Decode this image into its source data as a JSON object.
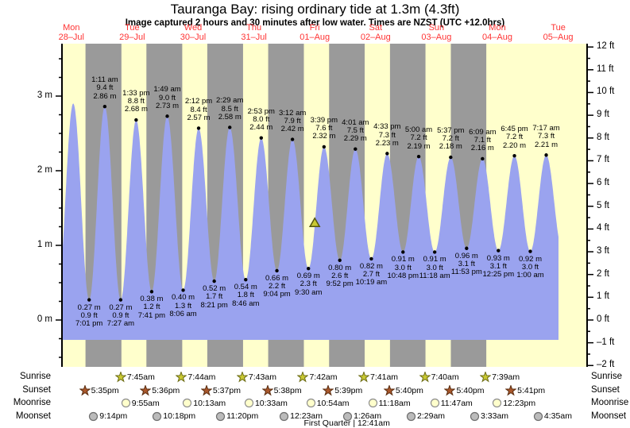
{
  "chart_data": {
    "type": "area",
    "title": "Tauranga Bay: rising ordinary tide at 1.3m (4.3ft)",
    "subtitle": "Image captured 2 hours and 30 minutes after low water. Times are NZST (UTC +12.0hrs)",
    "y_axis_left": {
      "unit": "m",
      "labels": [
        {
          "v": 0,
          "label": "0 m"
        },
        {
          "v": 1,
          "label": "1 m"
        },
        {
          "v": 2,
          "label": "2 m"
        },
        {
          "v": 3,
          "label": "3 m"
        }
      ]
    },
    "y_axis_right": {
      "unit": "ft",
      "min": -2,
      "max": 12
    },
    "days": [
      {
        "name": "Mon",
        "date": "28–Jul"
      },
      {
        "name": "Tue",
        "date": "29–Jul"
      },
      {
        "name": "Wed",
        "date": "30–Jul"
      },
      {
        "name": "Thu",
        "date": "31–Jul"
      },
      {
        "name": "Fri",
        "date": "01–Aug"
      },
      {
        "name": "Sat",
        "date": "02–Aug"
      },
      {
        "name": "Sun",
        "date": "03–Aug"
      },
      {
        "name": "Mon",
        "date": "04–Aug"
      },
      {
        "name": "Tue",
        "date": "05–Aug"
      }
    ],
    "extremes": [
      {
        "type": "low",
        "t": 6.4,
        "h": 0.25,
        "labeled": false
      },
      {
        "type": "high",
        "t": 12.75,
        "h": 2.9,
        "labeled": false
      },
      {
        "type": "low",
        "t": 19.017,
        "h": 0.27,
        "m": "0.27 m",
        "ft": "0.9 ft",
        "time": "7:01 pm",
        "labeled": true
      },
      {
        "type": "high",
        "t": 25.183,
        "h": 2.86,
        "m": "2.86 m",
        "ft": "9.4 ft",
        "time": "1:11 am",
        "labeled": true
      },
      {
        "type": "low",
        "t": 31.45,
        "h": 0.27,
        "m": "0.27 m",
        "ft": "0.9 ft",
        "time": "7:27 am",
        "labeled": true
      },
      {
        "type": "high",
        "t": 37.55,
        "h": 2.68,
        "m": "2.68 m",
        "ft": "8.8 ft",
        "time": "1:33 pm",
        "labeled": true
      },
      {
        "type": "low",
        "t": 43.683,
        "h": 0.38,
        "m": "0.38 m",
        "ft": "1.2 ft",
        "time": "7:41 pm",
        "labeled": true
      },
      {
        "type": "high",
        "t": 49.817,
        "h": 2.73,
        "m": "2.73 m",
        "ft": "9.0 ft",
        "time": "1:49 am",
        "labeled": true
      },
      {
        "type": "low",
        "t": 56.1,
        "h": 0.4,
        "m": "0.40 m",
        "ft": "1.3 ft",
        "time": "8:06 am",
        "labeled": true
      },
      {
        "type": "high",
        "t": 62.2,
        "h": 2.57,
        "m": "2.57 m",
        "ft": "8.4 ft",
        "time": "2:12 pm",
        "labeled": true
      },
      {
        "type": "low",
        "t": 68.35,
        "h": 0.52,
        "m": "0.52 m",
        "ft": "1.7 ft",
        "time": "8:21 pm",
        "labeled": true
      },
      {
        "type": "high",
        "t": 74.483,
        "h": 2.58,
        "m": "2.58 m",
        "ft": "8.5 ft",
        "time": "2:29 am",
        "labeled": true
      },
      {
        "type": "low",
        "t": 80.767,
        "h": 0.54,
        "m": "0.54 m",
        "ft": "1.8 ft",
        "time": "8:46 am",
        "labeled": true
      },
      {
        "type": "high",
        "t": 86.883,
        "h": 2.44,
        "m": "2.44 m",
        "ft": "8.0 ft",
        "time": "2:53 pm",
        "labeled": true
      },
      {
        "type": "low",
        "t": 93.067,
        "h": 0.66,
        "m": "0.66 m",
        "ft": "2.2 ft",
        "time": "9:04 pm",
        "labeled": true
      },
      {
        "type": "high",
        "t": 99.2,
        "h": 2.42,
        "m": "2.42 m",
        "ft": "7.9 ft",
        "time": "3:12 am",
        "labeled": true
      },
      {
        "type": "low",
        "t": 105.5,
        "h": 0.69,
        "m": "0.69 m",
        "ft": "2.3 ft",
        "time": "9:30 am",
        "labeled": true
      },
      {
        "type": "high",
        "t": 111.65,
        "h": 2.32,
        "m": "2.32 m",
        "ft": "7.6 ft",
        "time": "3:39 pm",
        "labeled": true
      },
      {
        "type": "low",
        "t": 117.867,
        "h": 0.8,
        "m": "0.80 m",
        "ft": "2.6 ft",
        "time": "9:52 pm",
        "labeled": true
      },
      {
        "type": "high",
        "t": 124.017,
        "h": 2.29,
        "m": "2.29 m",
        "ft": "7.5 ft",
        "time": "4:01 am",
        "labeled": true
      },
      {
        "type": "low",
        "t": 130.317,
        "h": 0.82,
        "m": "0.82 m",
        "ft": "2.7 ft",
        "time": "10:19 am",
        "labeled": true
      },
      {
        "type": "high",
        "t": 136.55,
        "h": 2.23,
        "m": "2.23 m",
        "ft": "7.3 ft",
        "time": "4:33 pm",
        "labeled": true
      },
      {
        "type": "low",
        "t": 142.8,
        "h": 0.91,
        "m": "0.91 m",
        "ft": "3.0 ft",
        "time": "10:48 pm",
        "labeled": true
      },
      {
        "type": "high",
        "t": 149.0,
        "h": 2.19,
        "m": "2.19 m",
        "ft": "7.2 ft",
        "time": "5:00 am",
        "labeled": true
      },
      {
        "type": "low",
        "t": 155.3,
        "h": 0.91,
        "m": "0.91 m",
        "ft": "3.0 ft",
        "time": "11:18 am",
        "labeled": true
      },
      {
        "type": "high",
        "t": 161.617,
        "h": 2.18,
        "m": "2.18 m",
        "ft": "7.2 ft",
        "time": "5:37 pm",
        "labeled": true
      },
      {
        "type": "low",
        "t": 167.883,
        "h": 0.96,
        "m": "0.96 m",
        "ft": "3.1 ft",
        "time": "11:53 pm",
        "labeled": true
      },
      {
        "type": "high",
        "t": 174.15,
        "h": 2.16,
        "m": "2.16 m",
        "ft": "7.1 ft",
        "time": "6:09 am",
        "labeled": true
      },
      {
        "type": "low",
        "t": 180.417,
        "h": 0.93,
        "m": "0.93 m",
        "ft": "3.1 ft",
        "time": "12:25 pm",
        "labeled": true
      },
      {
        "type": "high",
        "t": 186.75,
        "h": 2.2,
        "m": "2.20 m",
        "ft": "7.2 ft",
        "time": "6:45 pm",
        "labeled": true
      },
      {
        "type": "low",
        "t": 193.0,
        "h": 0.92,
        "m": "0.92 m",
        "ft": "3.0 ft",
        "time": "1:00 am",
        "labeled": true
      },
      {
        "type": "high",
        "t": 199.283,
        "h": 2.21,
        "m": "2.21 m",
        "ft": "7.3 ft",
        "time": "7:17 am",
        "labeled": true
      },
      {
        "type": "low",
        "t": 205.6,
        "h": 0.95,
        "labeled": false
      }
    ],
    "current_marker": {
      "t": 108.0,
      "height_m": 1.3
    },
    "night_bands": [
      [
        17.583,
        31.75
      ],
      [
        41.6,
        55.733
      ],
      [
        65.617,
        79.717
      ],
      [
        89.633,
        103.7
      ],
      [
        113.65,
        127.683
      ],
      [
        137.667,
        151.667
      ],
      [
        161.667,
        175.65
      ]
    ]
  },
  "rows": {
    "sunrise": {
      "label": "Sunrise",
      "entries": [
        {
          "time": "7:45am",
          "t": 31.75
        },
        {
          "time": "7:44am",
          "t": 55.733
        },
        {
          "time": "7:43am",
          "t": 79.717
        },
        {
          "time": "7:42am",
          "t": 103.7
        },
        {
          "time": "7:41am",
          "t": 127.683
        },
        {
          "time": "7:40am",
          "t": 151.667
        },
        {
          "time": "7:39am",
          "t": 175.65
        }
      ]
    },
    "sunset": {
      "label": "Sunset",
      "entries": [
        {
          "time": "5:35pm",
          "t": 17.583
        },
        {
          "time": "5:36pm",
          "t": 41.6
        },
        {
          "time": "5:37pm",
          "t": 65.617
        },
        {
          "time": "5:38pm",
          "t": 89.633
        },
        {
          "time": "5:39pm",
          "t": 113.65
        },
        {
          "time": "5:40pm",
          "t": 137.667
        },
        {
          "time": "5:40pm",
          "t": 161.667
        },
        {
          "time": "5:41pm",
          "t": 185.683
        }
      ]
    },
    "moonrise": {
      "label": "Moonrise",
      "entries": [
        {
          "time": "9:55am",
          "t": 33.917
        },
        {
          "time": "10:13am",
          "t": 58.217
        },
        {
          "time": "10:33am",
          "t": 82.55
        },
        {
          "time": "10:54am",
          "t": 106.9
        },
        {
          "time": "11:18am",
          "t": 131.3
        },
        {
          "time": "11:47am",
          "t": 155.783
        },
        {
          "time": "12:23pm",
          "t": 180.383
        }
      ]
    },
    "moonset": {
      "label": "Moonset",
      "entries": [
        {
          "time": "9:14pm",
          "t": 21.233
        },
        {
          "time": "10:18pm",
          "t": 46.3
        },
        {
          "time": "11:20pm",
          "t": 71.333
        },
        {
          "time": "12:23am",
          "t": 96.383
        },
        {
          "time": "1:26am",
          "t": 121.433
        },
        {
          "time": "2:29am",
          "t": 146.483
        },
        {
          "time": "3:33am",
          "t": 171.55
        },
        {
          "time": "4:35am",
          "t": 196.583
        }
      ]
    }
  },
  "moon_phase": {
    "text": "First Quarter | 12:41am",
    "t": 120.683
  },
  "colors": {
    "day_band": "#FFFFCC",
    "night_band": "#9A9A9A",
    "tide_fill": "#9AA3EF",
    "day_label": "#FF3333",
    "sunrise_star": "#C9C932",
    "sunrise_star_border": "#6B6B14",
    "sunset_star": "#A9572B",
    "sunset_star_border": "#5A2D10",
    "moonrise_circle": "#FFFFCC",
    "moonrise_border": "#8C8C8C",
    "moonset_circle": "#BBBBBB",
    "moonset_border": "#6E6E6E",
    "marker_fill": "#C9C932",
    "marker_border": "#55550F"
  }
}
